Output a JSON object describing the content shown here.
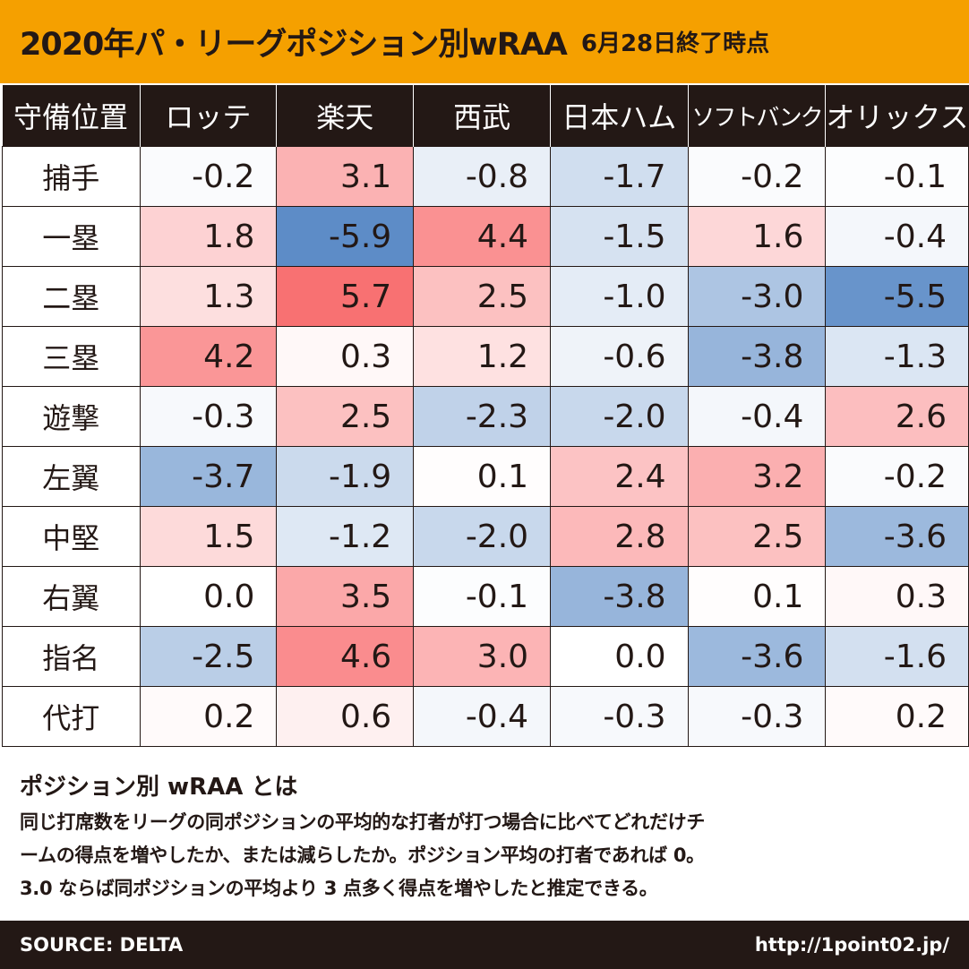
{
  "header": {
    "title": "2020年パ・リーグポジション別wRAA",
    "subtitle": "6月28日終了時点"
  },
  "chart_data": {
    "type": "table",
    "title": "2020年パ・リーグポジション別wRAA",
    "subtitle": "6月28日終了時点",
    "corner_label": "守備位置",
    "columns": [
      "ロッテ",
      "楽天",
      "西武",
      "日本ハム",
      "ソフトバンク",
      "オリックス"
    ],
    "rows": [
      {
        "label": "捕手",
        "values": [
          "-0.2",
          "3.1",
          "-0.8",
          "-1.7",
          "-0.2",
          "-0.1"
        ]
      },
      {
        "label": "一塁",
        "values": [
          "1.8",
          "-5.9",
          "4.4",
          "-1.5",
          "1.6",
          "-0.4"
        ]
      },
      {
        "label": "二塁",
        "values": [
          "1.3",
          "5.7",
          "2.5",
          "-1.0",
          "-3.0",
          "-5.5"
        ]
      },
      {
        "label": "三塁",
        "values": [
          "4.2",
          "0.3",
          "1.2",
          "-0.6",
          "-3.8",
          "-1.3"
        ]
      },
      {
        "label": "遊撃",
        "values": [
          "-0.3",
          "2.5",
          "-2.3",
          "-2.0",
          "-0.4",
          "2.6"
        ]
      },
      {
        "label": "左翼",
        "values": [
          "-3.7",
          "-1.9",
          "0.1",
          "2.4",
          "3.2",
          "-0.2"
        ]
      },
      {
        "label": "中堅",
        "values": [
          "1.5",
          "-1.2",
          "-2.0",
          "2.8",
          "2.5",
          "-3.6"
        ]
      },
      {
        "label": "右翼",
        "values": [
          "0.0",
          "3.5",
          "-0.1",
          "-3.8",
          "0.1",
          "0.3"
        ]
      },
      {
        "label": "指名",
        "values": [
          "-2.5",
          "4.6",
          "3.0",
          "0.0",
          "-3.6",
          "-1.6"
        ]
      },
      {
        "label": "代打",
        "values": [
          "0.2",
          "0.6",
          "-0.4",
          "-0.3",
          "-0.3",
          "0.2"
        ]
      }
    ],
    "color_scale": {
      "positive": "#f8696b",
      "negative": "#5a8ac6",
      "neutral": "#ffffff",
      "max_abs": 6
    }
  },
  "about": {
    "title": "ポジション別 wRAA とは",
    "lines": [
      "同じ打席数をリーグの同ポジションの平均的な打者が打つ場合に比べてどれだけチ",
      "ームの得点を増やしたか、または減らしたか。ポジション平均の打者であれば 0。",
      "3.0 ならば同ポジションの平均より 3 点多く得点を増やしたと推定できる。"
    ]
  },
  "footer": {
    "source": "SOURCE: DELTA",
    "url": "http://1point02.jp/"
  }
}
